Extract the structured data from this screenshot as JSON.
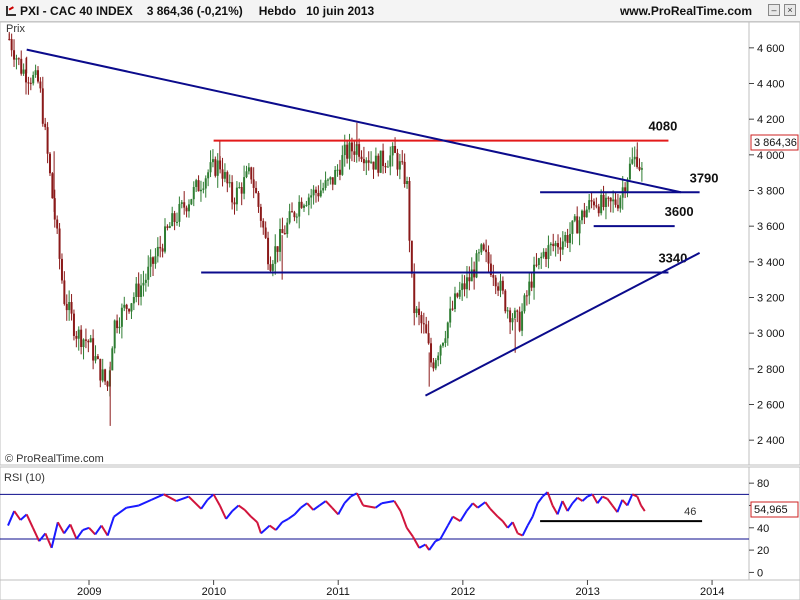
{
  "header": {
    "symbol": "PXI - CAC 40 INDEX",
    "quote": "3 864,36 (-0,21%)",
    "period": "Hebdo",
    "date": "10 juin 2013",
    "site": "www.ProRealTime.com"
  },
  "chart_data": [
    {
      "type": "candlestick",
      "title": "",
      "ylabel": "Prix",
      "watermark": "© ProRealTime.com",
      "ylim": [
        2300,
        4700
      ],
      "y_ticks": [
        2400,
        2600,
        2800,
        3000,
        3200,
        3400,
        3600,
        3800,
        4000,
        4200,
        4400,
        4600
      ],
      "y_tick_labels": [
        "2 400",
        "2 600",
        "2 800",
        "3 000",
        "3 200",
        "3 400",
        "3 600",
        "3 800",
        "4 000",
        "4 200",
        "4 400",
        "4 600"
      ],
      "x_range": [
        2008.35,
        2014.0
      ],
      "x_ticks": [
        2009,
        2010,
        2011,
        2012,
        2013,
        2014
      ],
      "x_tick_labels": [
        "2009",
        "2010",
        "2011",
        "2012",
        "2013",
        "2014"
      ],
      "last_value_label": "3 864,36",
      "last_value": 3864.36,
      "up_color": "#2e7d32",
      "down_color": "#8b1a1a",
      "series_path": [
        [
          2008.36,
          4650
        ],
        [
          2008.46,
          4480
        ],
        [
          2008.6,
          4400
        ],
        [
          2008.7,
          3800
        ],
        [
          2008.8,
          3200
        ],
        [
          2008.9,
          3000
        ],
        [
          2009.0,
          2950
        ],
        [
          2009.08,
          2800
        ],
        [
          2009.15,
          2700
        ],
        [
          2009.2,
          3050
        ],
        [
          2009.3,
          3150
        ],
        [
          2009.45,
          3300
        ],
        [
          2009.55,
          3450
        ],
        [
          2009.65,
          3600
        ],
        [
          2009.75,
          3700
        ],
        [
          2009.85,
          3800
        ],
        [
          2009.95,
          3900
        ],
        [
          2010.05,
          3950
        ],
        [
          2010.15,
          3750
        ],
        [
          2010.3,
          3900
        ],
        [
          2010.38,
          3650
        ],
        [
          2010.45,
          3400
        ],
        [
          2010.55,
          3550
        ],
        [
          2010.7,
          3750
        ],
        [
          2010.85,
          3800
        ],
        [
          2010.95,
          3850
        ],
        [
          2011.05,
          4000
        ],
        [
          2011.15,
          4050
        ],
        [
          2011.3,
          3950
        ],
        [
          2011.45,
          4000
        ],
        [
          2011.55,
          3850
        ],
        [
          2011.6,
          3150
        ],
        [
          2011.7,
          3000
        ],
        [
          2011.75,
          2820
        ],
        [
          2011.85,
          3000
        ],
        [
          2011.95,
          3200
        ],
        [
          2012.05,
          3300
        ],
        [
          2012.15,
          3450
        ],
        [
          2012.25,
          3350
        ],
        [
          2012.35,
          3150
        ],
        [
          2012.45,
          3050
        ],
        [
          2012.55,
          3300
        ],
        [
          2012.65,
          3450
        ],
        [
          2012.75,
          3500
        ],
        [
          2012.85,
          3550
        ],
        [
          2012.95,
          3650
        ],
        [
          2013.05,
          3750
        ],
        [
          2013.15,
          3700
        ],
        [
          2013.25,
          3750
        ],
        [
          2013.35,
          3950
        ],
        [
          2013.4,
          3990
        ],
        [
          2013.45,
          3864
        ]
      ],
      "high_points": [
        [
          2008.36,
          4680
        ],
        [
          2008.5,
          4550
        ],
        [
          2008.72,
          4020
        ],
        [
          2009.17,
          2480
        ],
        [
          2010.05,
          4080
        ],
        [
          2010.55,
          3300
        ],
        [
          2011.15,
          4180
        ],
        [
          2011.73,
          2700
        ],
        [
          2012.42,
          2890
        ],
        [
          2013.4,
          4070
        ]
      ],
      "horizontal_lines": [
        {
          "label": "4080",
          "value": 4080,
          "x_start": 2010.0,
          "x_end": 2013.65,
          "color": "#e31a1a"
        },
        {
          "label": "3790",
          "value": 3790,
          "x_start": 2012.62,
          "x_end": 2013.9,
          "color": "#0b0b8c"
        },
        {
          "label": "3600",
          "value": 3600,
          "x_start": 2013.05,
          "x_end": 2013.7,
          "color": "#0b0b8c"
        },
        {
          "label": "3340",
          "value": 3340,
          "x_start": 2009.9,
          "x_end": 2013.65,
          "color": "#0b0b8c"
        }
      ],
      "trend_lines": [
        {
          "from": [
            2008.5,
            4590
          ],
          "to": [
            2013.75,
            3790
          ],
          "color": "#0b0b8c"
        },
        {
          "from": [
            2011.7,
            2650
          ],
          "to": [
            2013.9,
            3450
          ],
          "color": "#0b0b8c"
        }
      ]
    },
    {
      "type": "line",
      "title": "RSI (10)",
      "ylim": [
        -5,
        90
      ],
      "y_ticks": [
        0,
        20,
        40,
        60,
        80
      ],
      "y_tick_labels": [
        "0",
        "20",
        "40",
        "60",
        "80"
      ],
      "x_range": [
        2008.35,
        2014.0
      ],
      "last_value_label": "54,965",
      "last_value": 54.965,
      "overbought": 70,
      "oversold": 30,
      "support": {
        "label": "46",
        "value": 46,
        "x_start": 2012.62,
        "x_end": 2013.92
      },
      "up_color": "#1a1aff",
      "down_color": "#d1143c",
      "values": [
        [
          2008.35,
          42
        ],
        [
          2008.4,
          55
        ],
        [
          2008.45,
          47
        ],
        [
          2008.5,
          52
        ],
        [
          2008.55,
          40
        ],
        [
          2008.6,
          28
        ],
        [
          2008.65,
          35
        ],
        [
          2008.7,
          22
        ],
        [
          2008.75,
          45
        ],
        [
          2008.8,
          35
        ],
        [
          2008.85,
          43
        ],
        [
          2008.9,
          30
        ],
        [
          2008.95,
          38
        ],
        [
          2009.0,
          40
        ],
        [
          2009.05,
          34
        ],
        [
          2009.1,
          42
        ],
        [
          2009.15,
          33
        ],
        [
          2009.2,
          50
        ],
        [
          2009.3,
          58
        ],
        [
          2009.4,
          60
        ],
        [
          2009.5,
          65
        ],
        [
          2009.6,
          70
        ],
        [
          2009.7,
          64
        ],
        [
          2009.8,
          68
        ],
        [
          2009.9,
          57
        ],
        [
          2009.95,
          65
        ],
        [
          2010.0,
          70
        ],
        [
          2010.05,
          60
        ],
        [
          2010.1,
          48
        ],
        [
          2010.15,
          55
        ],
        [
          2010.2,
          60
        ],
        [
          2010.25,
          56
        ],
        [
          2010.3,
          50
        ],
        [
          2010.35,
          45
        ],
        [
          2010.38,
          35
        ],
        [
          2010.45,
          42
        ],
        [
          2010.5,
          38
        ],
        [
          2010.55,
          45
        ],
        [
          2010.6,
          48
        ],
        [
          2010.65,
          52
        ],
        [
          2010.7,
          58
        ],
        [
          2010.75,
          62
        ],
        [
          2010.8,
          56
        ],
        [
          2010.85,
          60
        ],
        [
          2010.9,
          64
        ],
        [
          2010.95,
          58
        ],
        [
          2011.0,
          52
        ],
        [
          2011.05,
          62
        ],
        [
          2011.1,
          68
        ],
        [
          2011.15,
          71
        ],
        [
          2011.2,
          60
        ],
        [
          2011.3,
          58
        ],
        [
          2011.35,
          62
        ],
        [
          2011.45,
          64
        ],
        [
          2011.5,
          55
        ],
        [
          2011.55,
          40
        ],
        [
          2011.6,
          32
        ],
        [
          2011.65,
          22
        ],
        [
          2011.7,
          25
        ],
        [
          2011.73,
          20
        ],
        [
          2011.78,
          28
        ],
        [
          2011.82,
          30
        ],
        [
          2011.88,
          42
        ],
        [
          2011.92,
          50
        ],
        [
          2011.98,
          46
        ],
        [
          2012.03,
          55
        ],
        [
          2012.08,
          62
        ],
        [
          2012.12,
          58
        ],
        [
          2012.18,
          63
        ],
        [
          2012.22,
          57
        ],
        [
          2012.28,
          50
        ],
        [
          2012.32,
          46
        ],
        [
          2012.36,
          40
        ],
        [
          2012.4,
          45
        ],
        [
          2012.44,
          35
        ],
        [
          2012.48,
          33
        ],
        [
          2012.52,
          42
        ],
        [
          2012.56,
          50
        ],
        [
          2012.6,
          62
        ],
        [
          2012.64,
          68
        ],
        [
          2012.68,
          72
        ],
        [
          2012.72,
          60
        ],
        [
          2012.76,
          52
        ],
        [
          2012.8,
          64
        ],
        [
          2012.84,
          55
        ],
        [
          2012.88,
          62
        ],
        [
          2012.92,
          67
        ],
        [
          2012.96,
          64
        ],
        [
          2013.0,
          68
        ],
        [
          2013.04,
          70
        ],
        [
          2013.08,
          62
        ],
        [
          2013.12,
          68
        ],
        [
          2013.16,
          66
        ],
        [
          2013.2,
          60
        ],
        [
          2013.24,
          54
        ],
        [
          2013.28,
          65
        ],
        [
          2013.32,
          60
        ],
        [
          2013.36,
          70
        ],
        [
          2013.4,
          68
        ],
        [
          2013.43,
          60
        ],
        [
          2013.46,
          55
        ]
      ]
    }
  ]
}
